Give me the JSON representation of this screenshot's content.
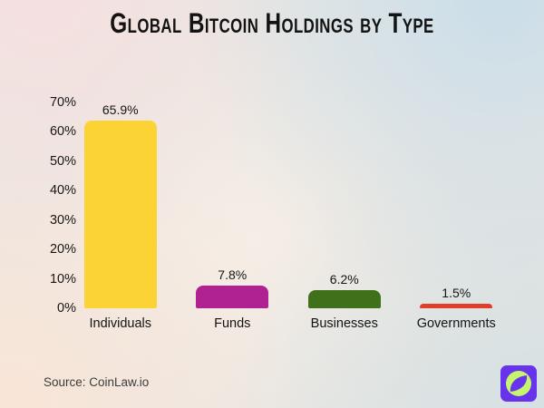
{
  "title": "Global Bitcoin Holdings by Type",
  "source": "Source: CoinLaw.io",
  "logo": {
    "name": "coinlaw-logo",
    "square_color": "#6733EC",
    "circle_color": "#C7F46D"
  },
  "chart_data": {
    "type": "bar",
    "title": "Global Bitcoin Holdings by Type",
    "categories": [
      "Individuals",
      "Funds",
      "Businesses",
      "Governments"
    ],
    "values": [
      65.9,
      7.8,
      6.2,
      1.5
    ],
    "value_labels": [
      "65.9%",
      "7.8%",
      "6.2%",
      "1.5%"
    ],
    "bar_colors": [
      "#FCD335",
      "#B02292",
      "#41701A",
      "#E23C2A"
    ],
    "xlabel": "",
    "ylabel": "",
    "ylim": [
      0,
      70
    ],
    "ytick_values": [
      0,
      10,
      20,
      30,
      40,
      50,
      60,
      70
    ],
    "yticks": [
      "0%",
      "10%",
      "20%",
      "30%",
      "40%",
      "50%",
      "60%",
      "70%"
    ],
    "grid": false,
    "legend": false,
    "text_color": "#131313"
  }
}
